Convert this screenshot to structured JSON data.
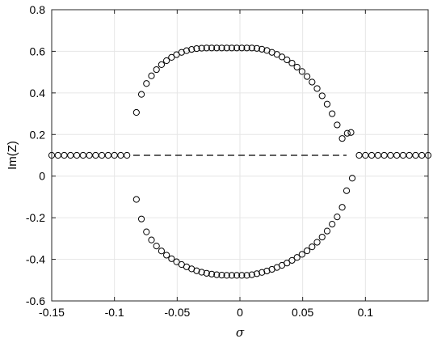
{
  "chart_data": {
    "type": "scatter",
    "xlabel": "σ",
    "ylabel": "Im(Z)",
    "xlim": [
      -0.15,
      0.15
    ],
    "ylim": [
      -0.6,
      0.8
    ],
    "grid": true,
    "x_ticks": [
      -0.15,
      -0.1,
      -0.05,
      0,
      0.05,
      0.1
    ],
    "x_tick_labels": [
      "-0.15",
      "-0.1",
      "-0.05",
      "0",
      "0.05",
      "0.1"
    ],
    "y_ticks": [
      -0.6,
      -0.4,
      -0.2,
      0,
      0.2,
      0.4,
      0.6,
      0.8
    ],
    "y_tick_labels": [
      "-0.6",
      "-0.4",
      "-0.2",
      "0",
      "0.2",
      "0.4",
      "0.6",
      "0.8"
    ],
    "reference_line": {
      "style": "dashed",
      "y": 0.1,
      "x_start": -0.085,
      "x_end": 0.085
    },
    "series": [
      {
        "marker": "open-circle",
        "points": [
          [
            -0.15,
            0.1
          ],
          [
            -0.145,
            0.1
          ],
          [
            -0.14,
            0.1
          ],
          [
            -0.135,
            0.1
          ],
          [
            -0.13,
            0.1
          ],
          [
            -0.125,
            0.1
          ],
          [
            -0.12,
            0.1
          ],
          [
            -0.115,
            0.1
          ],
          [
            -0.11,
            0.1
          ],
          [
            -0.105,
            0.1
          ],
          [
            -0.1,
            0.1
          ],
          [
            -0.095,
            0.1
          ],
          [
            -0.09,
            0.1
          ],
          [
            0.095,
            0.1
          ],
          [
            0.1,
            0.1
          ],
          [
            0.105,
            0.1
          ],
          [
            0.11,
            0.1
          ],
          [
            0.115,
            0.1
          ],
          [
            0.12,
            0.1
          ],
          [
            0.125,
            0.1
          ],
          [
            0.13,
            0.1
          ],
          [
            0.135,
            0.1
          ],
          [
            0.14,
            0.1
          ],
          [
            0.145,
            0.1
          ],
          [
            0.15,
            0.1
          ],
          [
            -0.0825,
            0.306
          ],
          [
            -0.0785,
            0.393
          ],
          [
            -0.0745,
            0.445
          ],
          [
            -0.0705,
            0.482
          ],
          [
            -0.0665,
            0.512
          ],
          [
            -0.0625,
            0.536
          ],
          [
            -0.0585,
            0.555
          ],
          [
            -0.0545,
            0.571
          ],
          [
            -0.0505,
            0.584
          ],
          [
            -0.0465,
            0.595
          ],
          [
            -0.0425,
            0.603
          ],
          [
            -0.0385,
            0.609
          ],
          [
            -0.0345,
            0.613
          ],
          [
            -0.0305,
            0.615
          ],
          [
            -0.0265,
            0.616
          ],
          [
            -0.0225,
            0.616
          ],
          [
            -0.0185,
            0.616
          ],
          [
            -0.0145,
            0.616
          ],
          [
            -0.0105,
            0.616
          ],
          [
            -0.0065,
            0.616
          ],
          [
            -0.0025,
            0.616
          ],
          [
            0.0015,
            0.616
          ],
          [
            0.0055,
            0.616
          ],
          [
            0.0095,
            0.616
          ],
          [
            0.0135,
            0.614
          ],
          [
            0.0175,
            0.61
          ],
          [
            0.0215,
            0.604
          ],
          [
            0.0255,
            0.595
          ],
          [
            0.0295,
            0.585
          ],
          [
            0.0335,
            0.573
          ],
          [
            0.0375,
            0.559
          ],
          [
            0.0415,
            0.543
          ],
          [
            0.0455,
            0.524
          ],
          [
            0.0495,
            0.503
          ],
          [
            0.0535,
            0.479
          ],
          [
            0.0575,
            0.452
          ],
          [
            0.0615,
            0.421
          ],
          [
            0.0655,
            0.386
          ],
          [
            0.0695,
            0.346
          ],
          [
            0.0735,
            0.3
          ],
          [
            0.0775,
            0.246
          ],
          [
            0.0815,
            0.181
          ],
          [
            0.0855,
            0.206
          ],
          [
            0.0885,
            0.21
          ],
          [
            0.0895,
            -0.01
          ],
          [
            0.085,
            -0.07
          ],
          [
            -0.0825,
            -0.112
          ],
          [
            -0.0785,
            -0.206
          ],
          [
            -0.0745,
            -0.268
          ],
          [
            -0.0705,
            -0.307
          ],
          [
            -0.0665,
            -0.336
          ],
          [
            -0.0625,
            -0.36
          ],
          [
            -0.0585,
            -0.38
          ],
          [
            -0.0545,
            -0.397
          ],
          [
            -0.0505,
            -0.412
          ],
          [
            -0.0465,
            -0.425
          ],
          [
            -0.0425,
            -0.436
          ],
          [
            -0.0385,
            -0.446
          ],
          [
            -0.0345,
            -0.455
          ],
          [
            -0.0305,
            -0.462
          ],
          [
            -0.0265,
            -0.467
          ],
          [
            -0.0225,
            -0.471
          ],
          [
            -0.0185,
            -0.474
          ],
          [
            -0.0145,
            -0.476
          ],
          [
            -0.0105,
            -0.477
          ],
          [
            -0.0065,
            -0.477
          ],
          [
            -0.0025,
            -0.477
          ],
          [
            0.0015,
            -0.477
          ],
          [
            0.0055,
            -0.477
          ],
          [
            0.0095,
            -0.474
          ],
          [
            0.0135,
            -0.469
          ],
          [
            0.0175,
            -0.463
          ],
          [
            0.0215,
            -0.456
          ],
          [
            0.0255,
            -0.448
          ],
          [
            0.0295,
            -0.439
          ],
          [
            0.0335,
            -0.429
          ],
          [
            0.0375,
            -0.418
          ],
          [
            0.0415,
            -0.405
          ],
          [
            0.0455,
            -0.391
          ],
          [
            0.0495,
            -0.376
          ],
          [
            0.0535,
            -0.359
          ],
          [
            0.0575,
            -0.34
          ],
          [
            0.0615,
            -0.318
          ],
          [
            0.0655,
            -0.293
          ],
          [
            0.0695,
            -0.264
          ],
          [
            0.0735,
            -0.231
          ],
          [
            0.0775,
            -0.196
          ],
          [
            0.0815,
            -0.15
          ]
        ]
      }
    ]
  }
}
